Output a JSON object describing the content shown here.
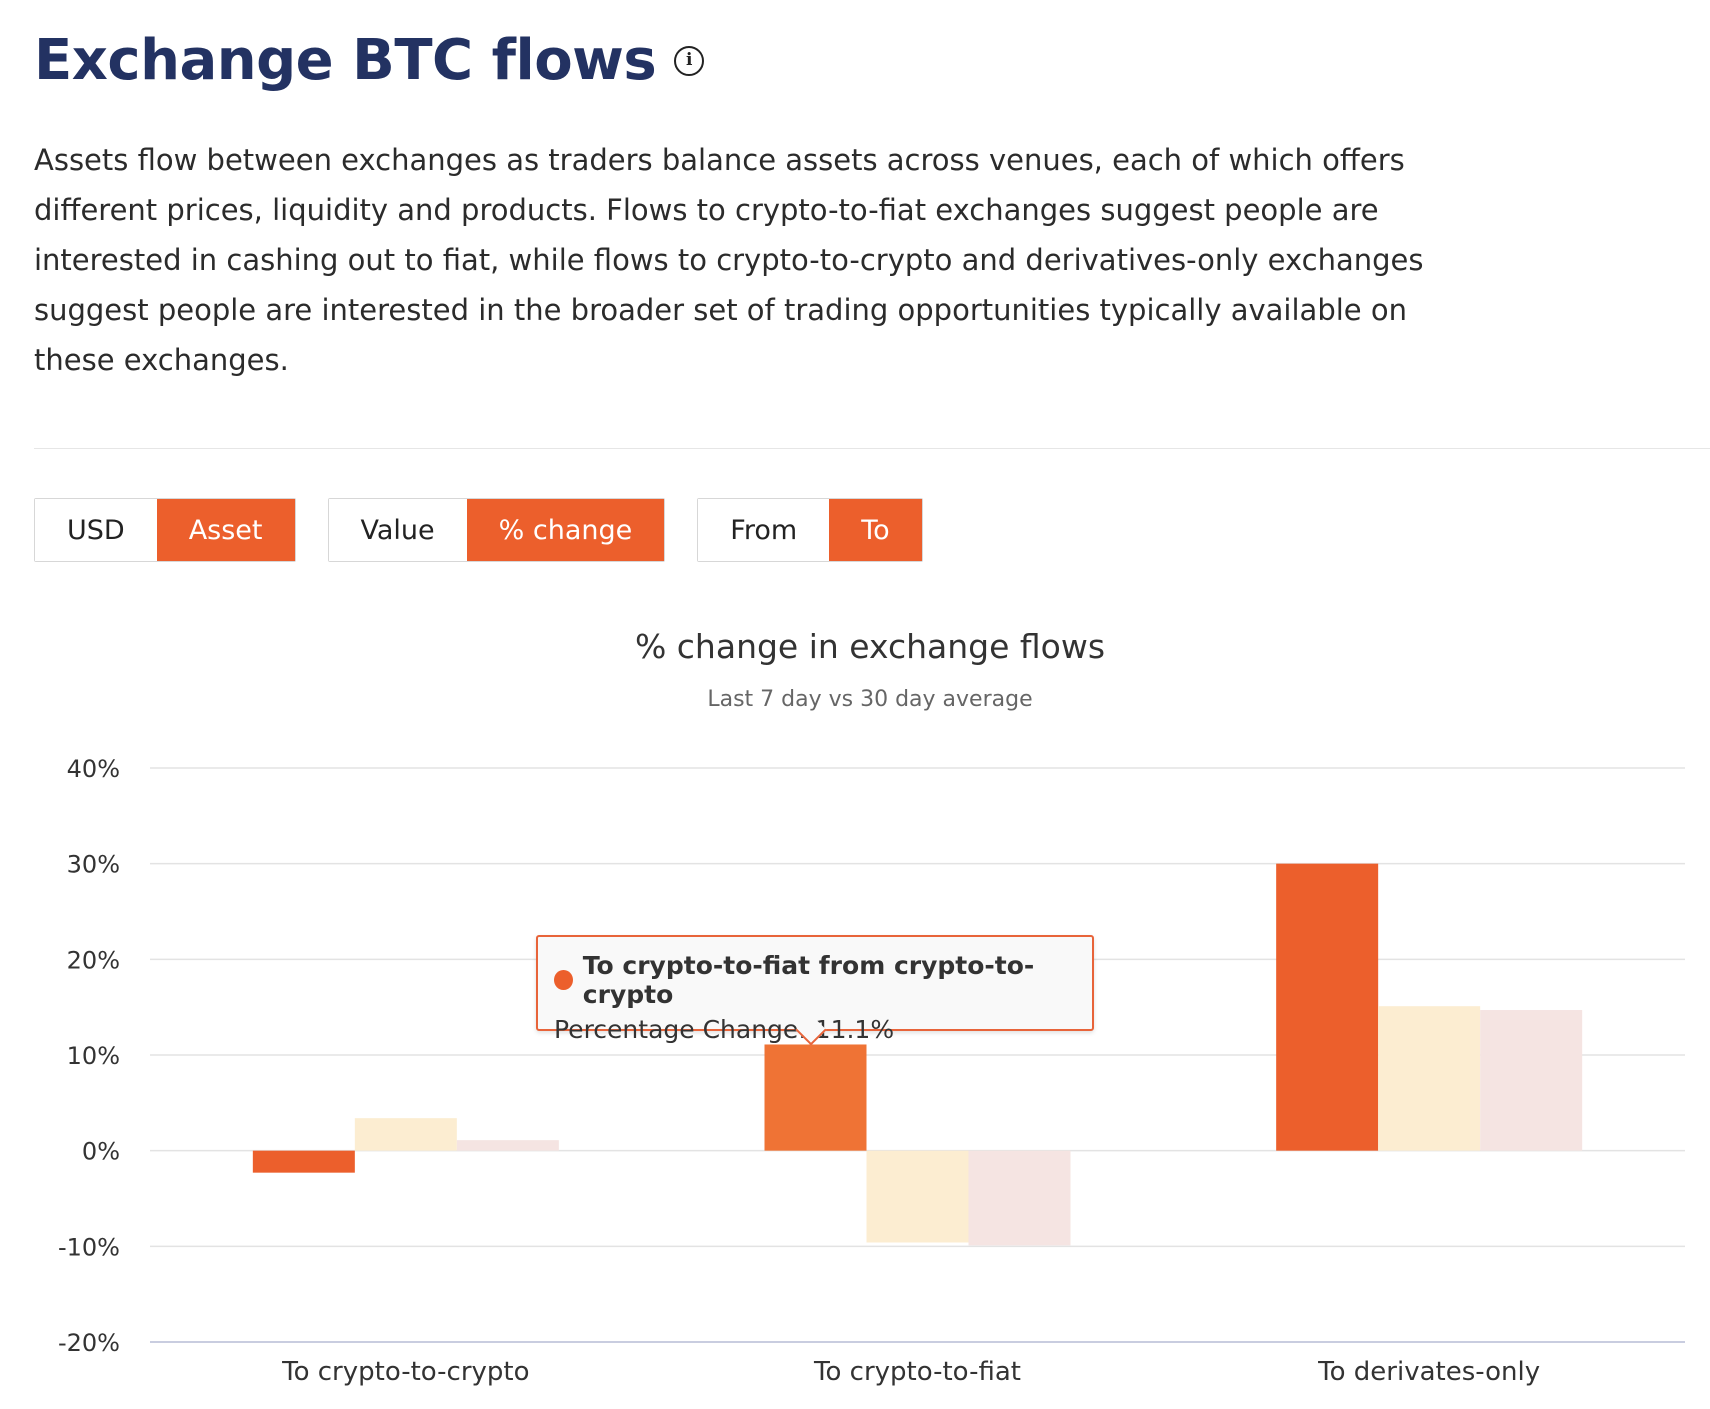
{
  "header": {
    "title": "Exchange BTC flows",
    "info_icon": "info-icon",
    "description": "Assets flow between exchanges as traders balance assets across venues, each of which offers different prices, liquidity and products. Flows to crypto-to-fiat exchanges suggest people are interested in cashing out to fiat, while flows to crypto-to-crypto and derivatives-only exchanges suggest people are interested in the broader set of trading opportunities typically available on these exchanges."
  },
  "toggles": {
    "unit": {
      "options": [
        "USD",
        "Asset"
      ],
      "selected": "Asset"
    },
    "metric": {
      "options": [
        "Value",
        "% change"
      ],
      "selected": "% change"
    },
    "direction": {
      "options": [
        "From",
        "To"
      ],
      "selected": "To"
    }
  },
  "colors": {
    "accent": "#ec5f2c",
    "series_1": "#ec5f2c",
    "series_2": "#fcedd1",
    "series_3": "#f5e4e2",
    "highlight": "#ef7335",
    "title": "#233262"
  },
  "tooltip": {
    "series": "To crypto-to-fiat from crypto-to-crypto",
    "label": "Percentage Change: 11.1%"
  },
  "chart_data": {
    "type": "bar",
    "title": "% change in exchange flows",
    "subtitle": "Last 7 day vs 30 day average",
    "categories": [
      "To crypto-to-crypto",
      "To crypto-to-fiat",
      "To derivates-only"
    ],
    "series": [
      {
        "values": [
          -2.3,
          11.1,
          30.0
        ]
      },
      {
        "values": [
          3.4,
          -9.6,
          15.1
        ]
      },
      {
        "values": [
          1.1,
          -9.9,
          14.7
        ]
      }
    ],
    "yticks": [
      "40%",
      "30%",
      "20%",
      "10%",
      "0%",
      "-10%",
      "-20%"
    ],
    "ylim": [
      -20,
      40
    ],
    "grid": true,
    "highlighted": {
      "series": 0,
      "category": 1
    }
  }
}
